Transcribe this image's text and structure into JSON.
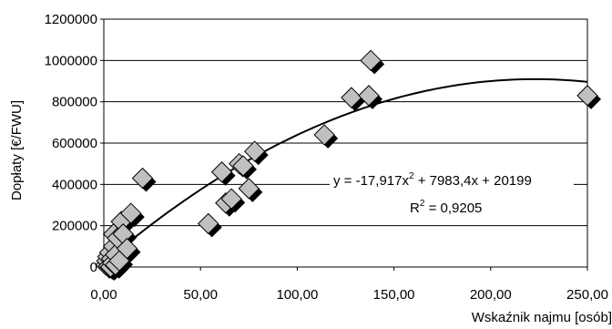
{
  "chart_data": {
    "type": "scatter",
    "title": "",
    "xlabel": "Wskaźnik najmu [osób]",
    "ylabel": "Dopłaty [€/FWU]",
    "xlim": [
      0,
      250
    ],
    "ylim": [
      0,
      1200000
    ],
    "x_ticks": [
      "0,00",
      "50,00",
      "100,00",
      "150,00",
      "200,00",
      "250,00"
    ],
    "y_ticks": [
      "0",
      "200000",
      "400000",
      "600000",
      "800000",
      "1000000",
      "1200000"
    ],
    "grid": "horizontal",
    "marker": "diamond",
    "marker_color": "#c0c0c0",
    "series": [
      {
        "x": [
          1,
          1.5,
          2,
          2.5,
          3,
          3.5,
          4,
          4.5,
          5,
          5,
          6,
          6,
          7,
          8,
          9,
          10,
          12,
          14,
          20,
          54,
          61,
          63,
          66,
          70,
          72,
          75,
          78,
          114,
          128,
          137,
          138,
          250
        ],
        "y": [
          10000,
          30000,
          50000,
          5000,
          70000,
          0,
          40000,
          20000,
          100000,
          160000,
          60000,
          10000,
          140000,
          30000,
          220000,
          160000,
          90000,
          260000,
          430000,
          210000,
          460000,
          310000,
          330000,
          500000,
          490000,
          380000,
          560000,
          640000,
          820000,
          830000,
          1000000,
          830000
        ]
      }
    ],
    "trendline": {
      "type": "polynomial",
      "coefficients": [
        -17.917,
        7983.4,
        20199
      ],
      "x_range": [
        0,
        250
      ],
      "equation_label": "y = -17,917x",
      "equation_exponent": "2",
      "equation_rest": " + 7983,4x + 20199",
      "r2_label": "R",
      "r2_exponent": "2",
      "r2_value": " = 0,9205"
    }
  }
}
